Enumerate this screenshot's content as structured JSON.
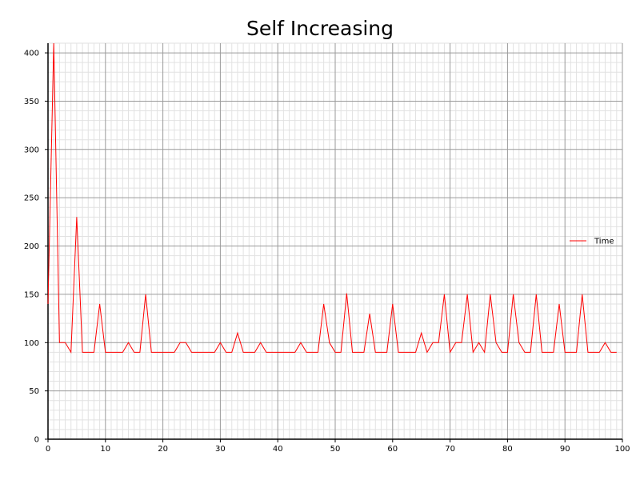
{
  "chart_data": {
    "type": "line",
    "title": "Self Increasing",
    "xlabel": "",
    "ylabel": "",
    "xlim": [
      0,
      100
    ],
    "ylim": [
      0,
      410
    ],
    "x_ticks": [
      0,
      10,
      20,
      30,
      40,
      50,
      60,
      70,
      80,
      90,
      100
    ],
    "y_ticks": [
      0,
      50,
      100,
      150,
      200,
      250,
      300,
      350,
      400
    ],
    "x_minor_step": 1,
    "y_minor_step": 10,
    "grid": true,
    "legend": {
      "position": "right",
      "visible": true
    },
    "series": [
      {
        "name": "Time",
        "color": "#ff0000",
        "x": [
          0,
          1,
          2,
          3,
          4,
          5,
          6,
          7,
          8,
          9,
          10,
          11,
          12,
          13,
          14,
          15,
          16,
          17,
          18,
          19,
          20,
          21,
          22,
          23,
          24,
          25,
          26,
          27,
          28,
          29,
          30,
          31,
          32,
          33,
          34,
          35,
          36,
          37,
          38,
          39,
          40,
          41,
          42,
          43,
          44,
          45,
          46,
          47,
          48,
          49,
          50,
          51,
          52,
          53,
          54,
          55,
          56,
          57,
          58,
          59,
          60,
          61,
          62,
          63,
          64,
          65,
          66,
          67,
          68,
          69,
          70,
          71,
          72,
          73,
          74,
          75,
          76,
          77,
          78,
          79,
          80,
          81,
          82,
          83,
          84,
          85,
          86,
          87,
          88,
          89,
          90,
          91,
          92,
          93,
          94,
          95,
          96,
          97,
          98,
          99
        ],
        "values": [
          140,
          410,
          100,
          100,
          90,
          230,
          90,
          90,
          90,
          140,
          90,
          90,
          90,
          90,
          100,
          90,
          90,
          150,
          90,
          90,
          90,
          90,
          90,
          100,
          100,
          90,
          90,
          90,
          90,
          90,
          100,
          90,
          90,
          110,
          90,
          90,
          90,
          100,
          90,
          90,
          90,
          90,
          90,
          90,
          100,
          90,
          90,
          90,
          140,
          100,
          90,
          90,
          151,
          90,
          90,
          90,
          130,
          90,
          90,
          90,
          140,
          90,
          90,
          90,
          90,
          110,
          90,
          100,
          100,
          150,
          90,
          100,
          100,
          150,
          90,
          100,
          90,
          150,
          100,
          90,
          90,
          150,
          100,
          90,
          90,
          150,
          90,
          90,
          90,
          140,
          90,
          90,
          90,
          150,
          90,
          90,
          90,
          100,
          90,
          90
        ]
      }
    ]
  }
}
